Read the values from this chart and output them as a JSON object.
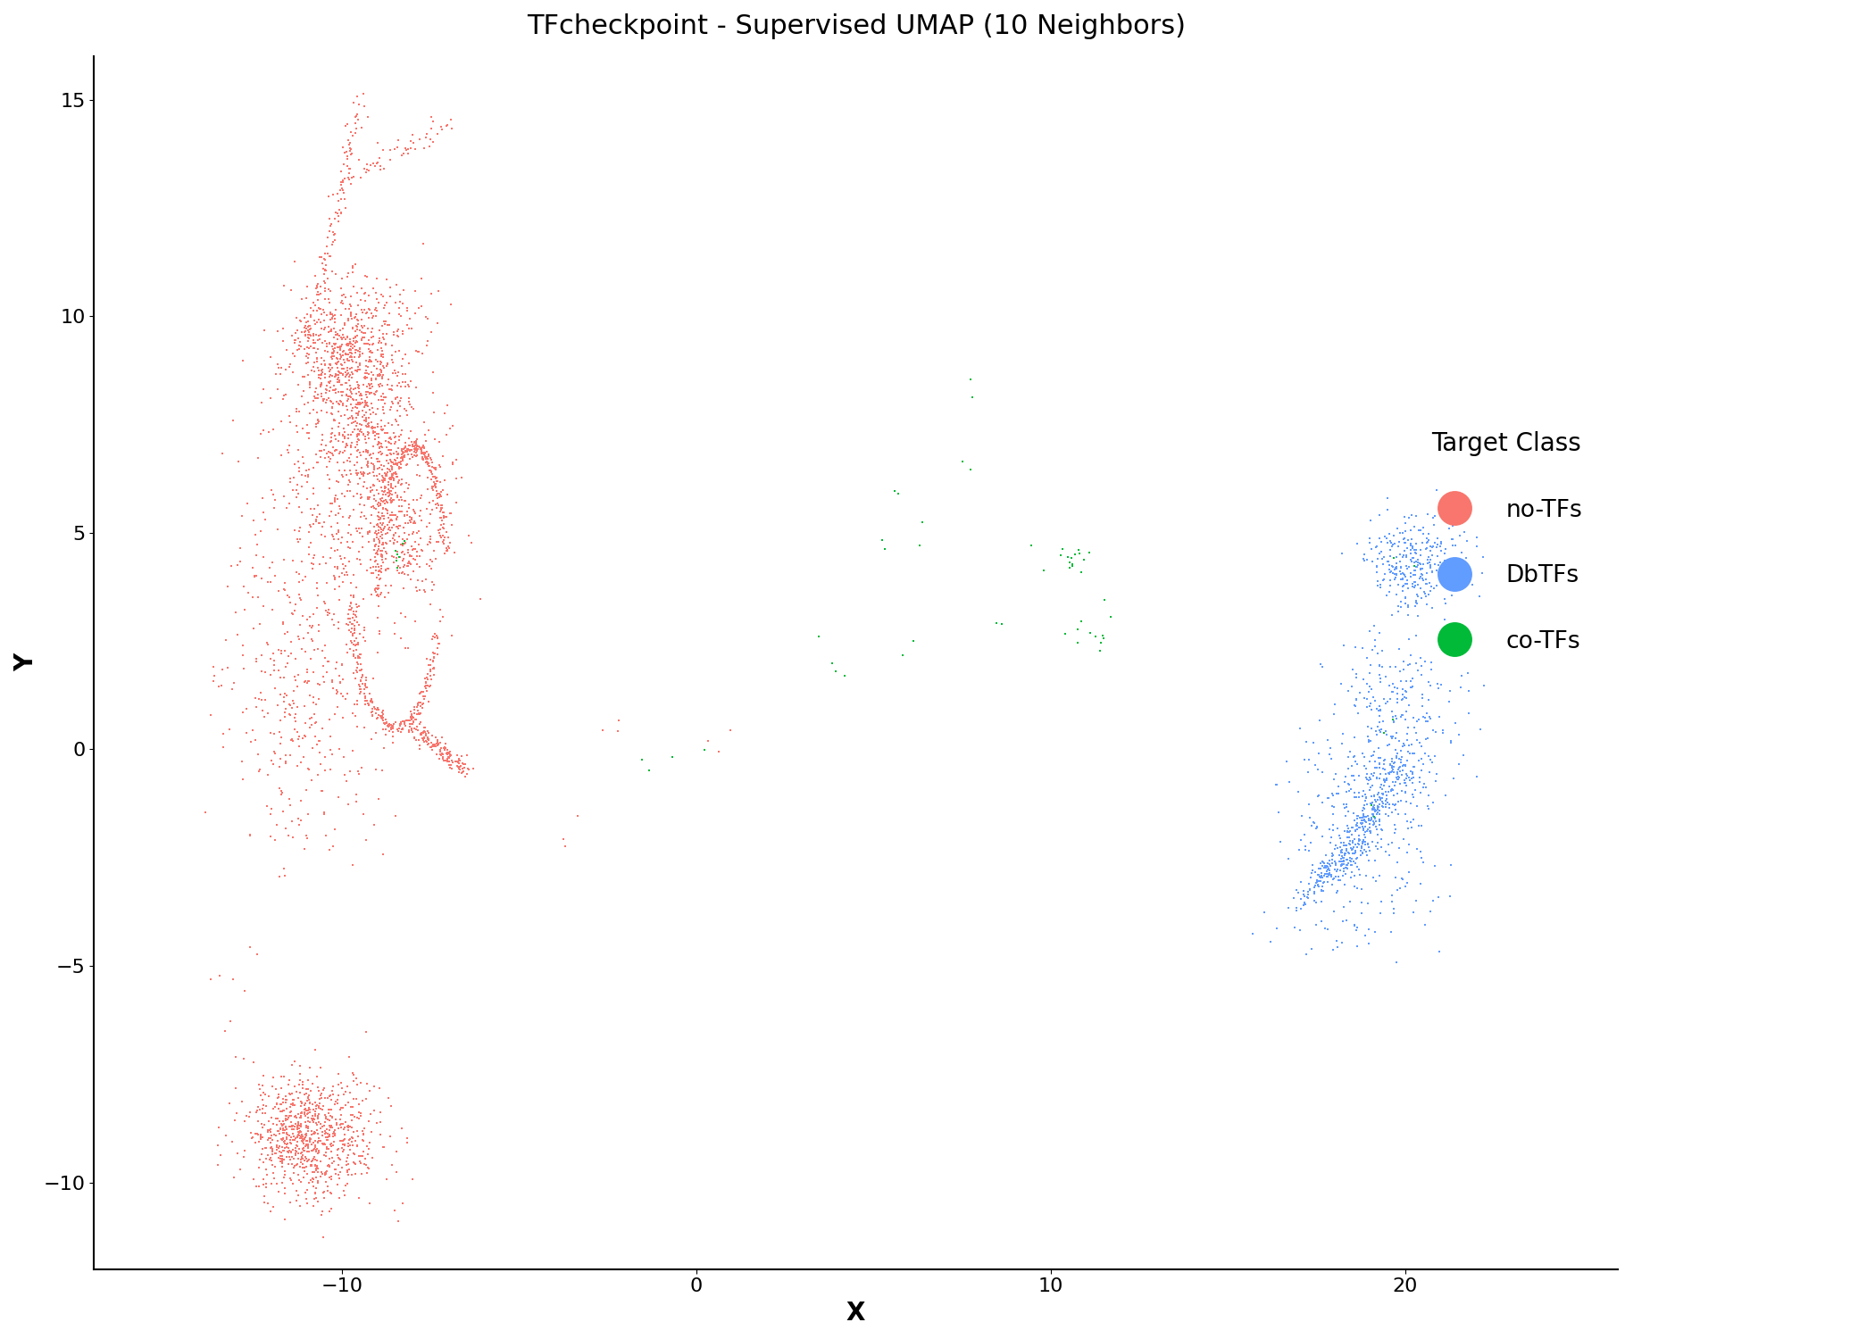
{
  "title": "TFcheckpoint - Supervised UMAP (10 Neighbors)",
  "xlabel": "X",
  "ylabel": "Y",
  "xlim": [
    -17,
    26
  ],
  "ylim": [
    -12,
    16
  ],
  "xticks": [
    -10,
    0,
    10,
    20
  ],
  "yticks": [
    -10,
    -5,
    0,
    5,
    10,
    15
  ],
  "background_color": "#ffffff",
  "legend_title": "Target Class",
  "classes": [
    "no-TFs",
    "DbTFs",
    "co-TFs"
  ],
  "colors": {
    "no-TFs": "#F8766D",
    "DbTFs": "#619CFF",
    "co-TFs": "#00BA38"
  },
  "red_color": "#F8766D",
  "blue_color": "#619CFF",
  "green_color": "#00BA38",
  "point_size": 2.5,
  "alpha": 1.0,
  "title_fontsize": 22,
  "axis_label_fontsize": 20,
  "tick_fontsize": 16,
  "legend_fontsize": 19,
  "legend_title_fontsize": 20
}
